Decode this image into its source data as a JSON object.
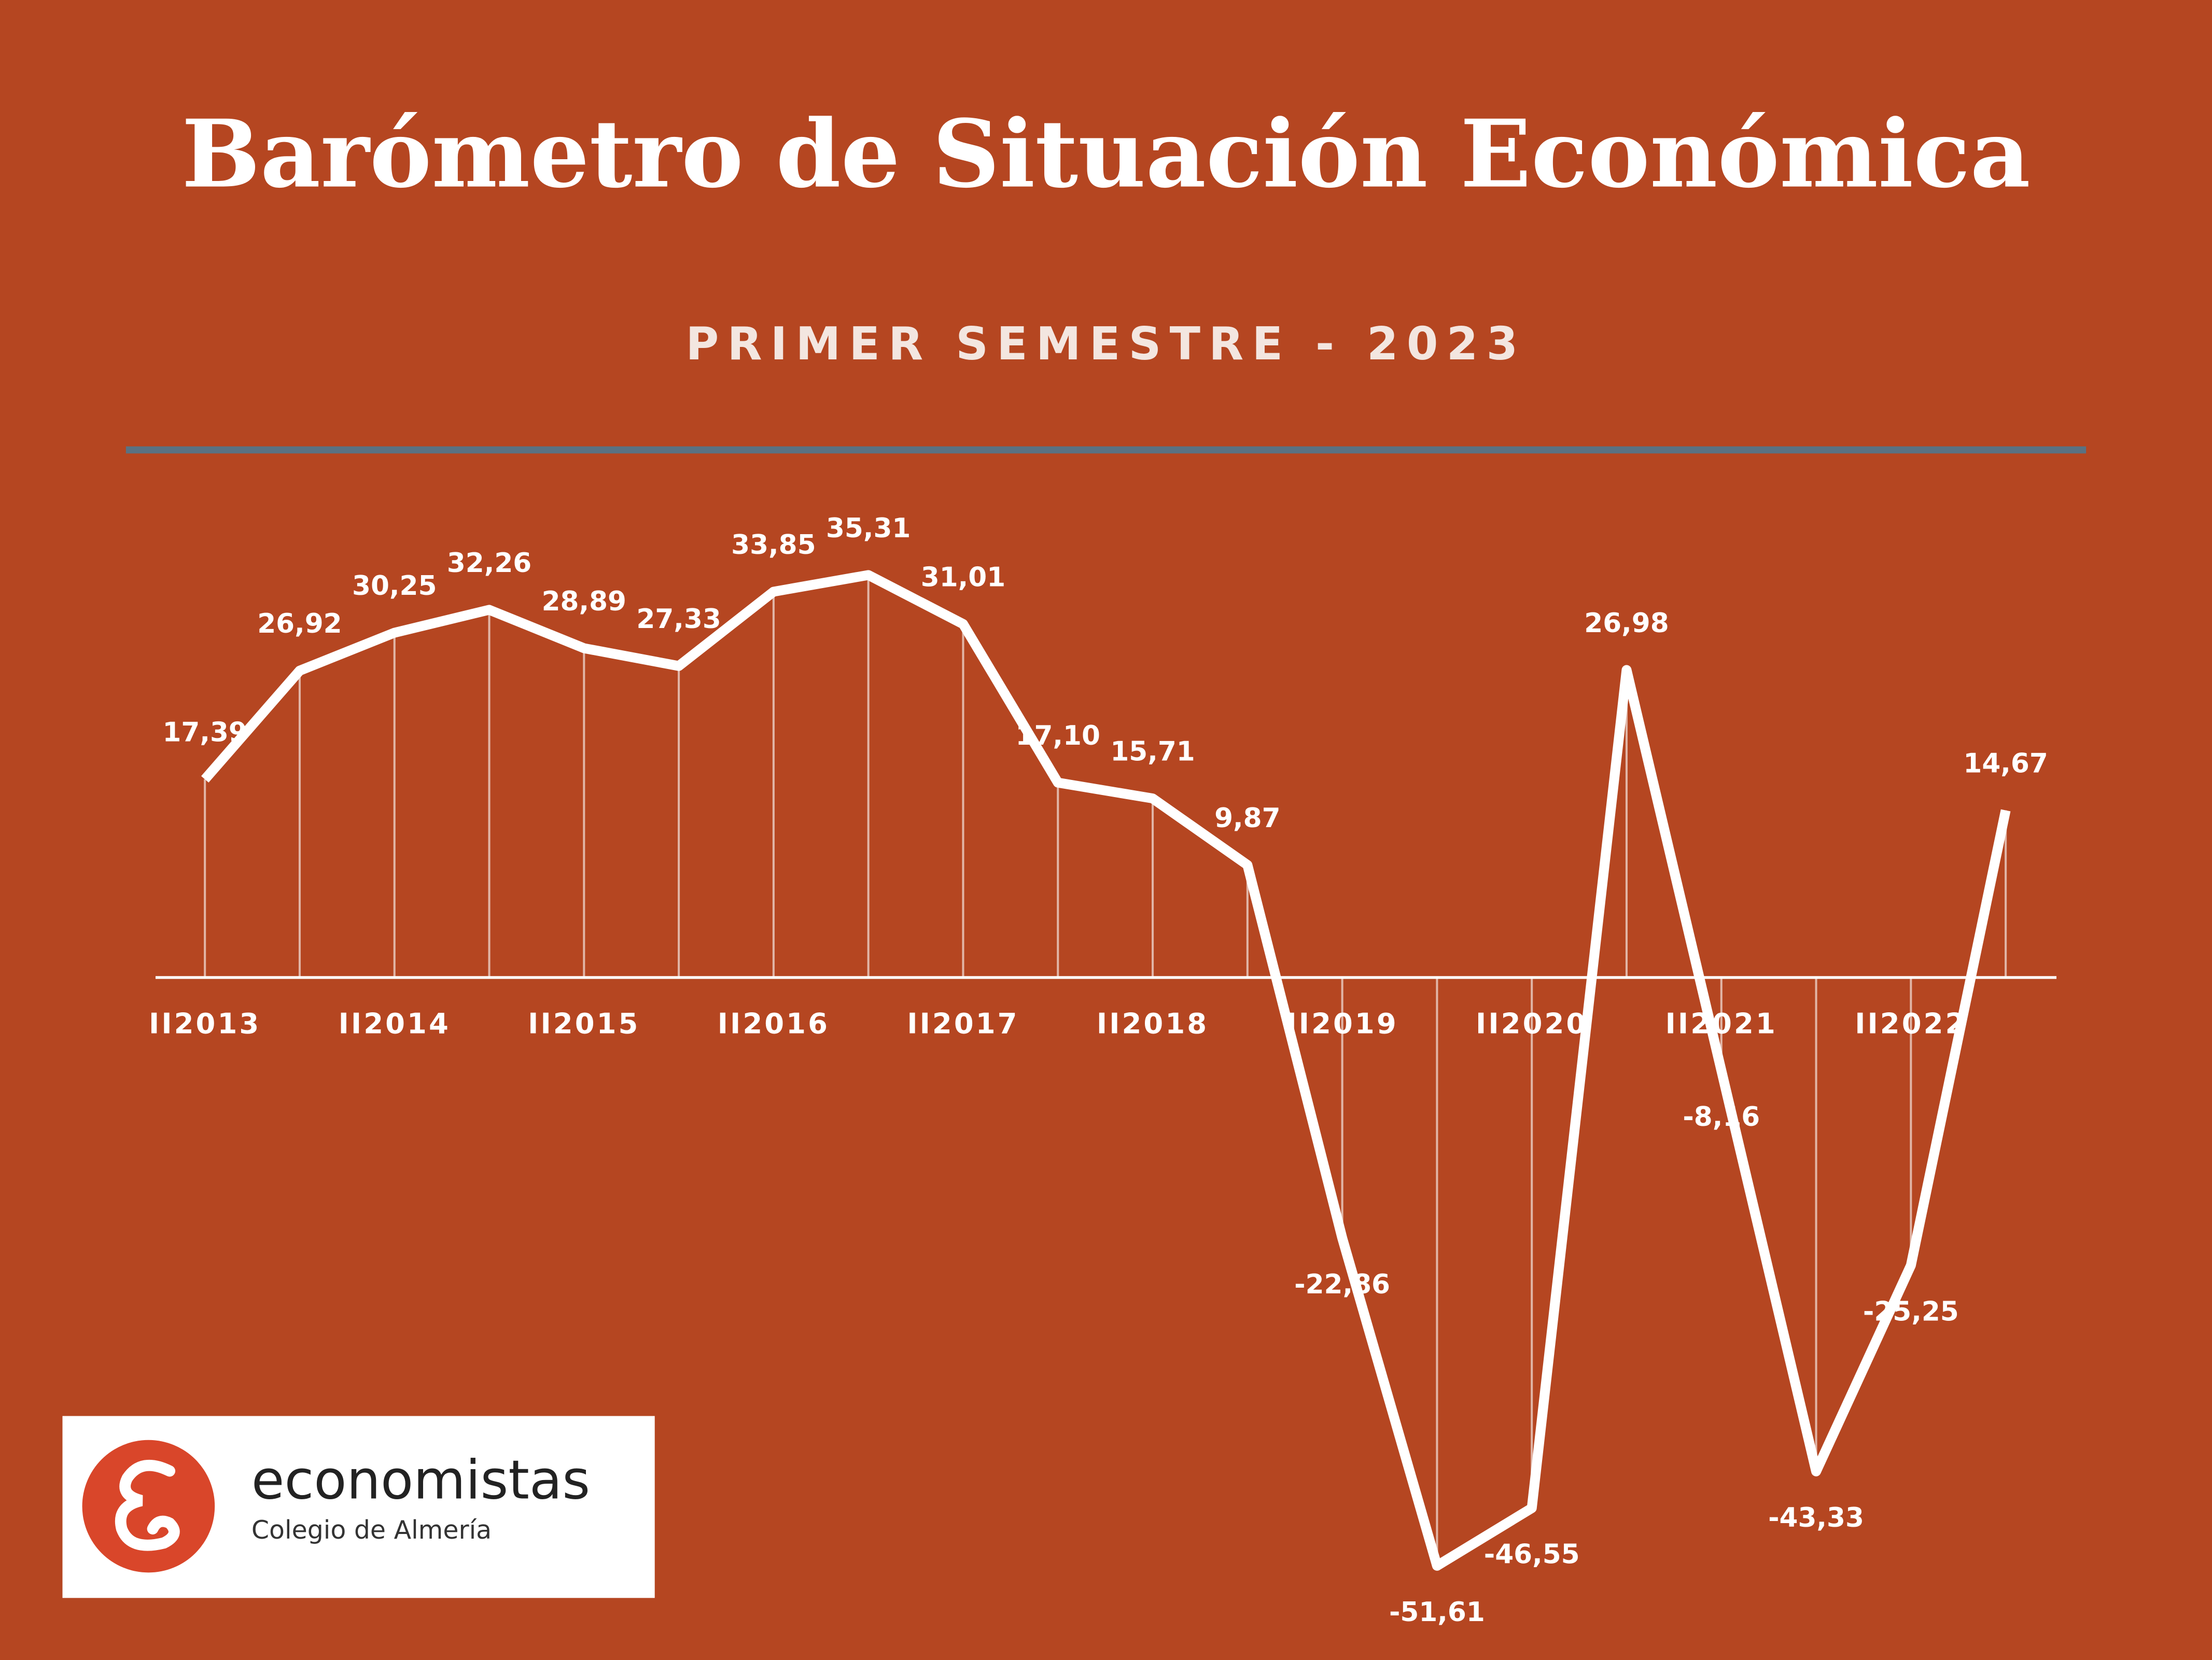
{
  "chart_data": {
    "type": "line",
    "title": "Barómetro de Situación Económica",
    "subtitle": "PRIMER SEMESTRE - 2023",
    "categories": [
      "II2013",
      null,
      "II2014",
      null,
      "II2015",
      null,
      "II2016",
      null,
      "II2017",
      null,
      "II2018",
      null,
      "II2019",
      null,
      "II2020",
      null,
      "II2021",
      null,
      "II2022",
      null
    ],
    "values": [
      17.39,
      26.92,
      30.25,
      32.26,
      28.89,
      27.33,
      33.85,
      35.31,
      31.01,
      17.1,
      15.71,
      9.87,
      -22.86,
      -51.61,
      -46.55,
      26.98,
      -8.16,
      -43.33,
      -25.25,
      14.67
    ],
    "value_labels": [
      "17,39",
      "26,92",
      "30,25",
      "32,26",
      "28,89",
      "27,33",
      "33,85",
      "35,31",
      "31,01",
      "17,10",
      "15,71",
      "9,87",
      "-22,86",
      "-51,61",
      "-46,55",
      "26,98",
      "-8,16",
      "-43,33",
      "-25,25",
      "14,67"
    ],
    "color": "#ffffff",
    "ylim": [
      -60,
      50
    ]
  },
  "logo": {
    "name": "economistas",
    "subtitle": "Colegio de Almería"
  }
}
